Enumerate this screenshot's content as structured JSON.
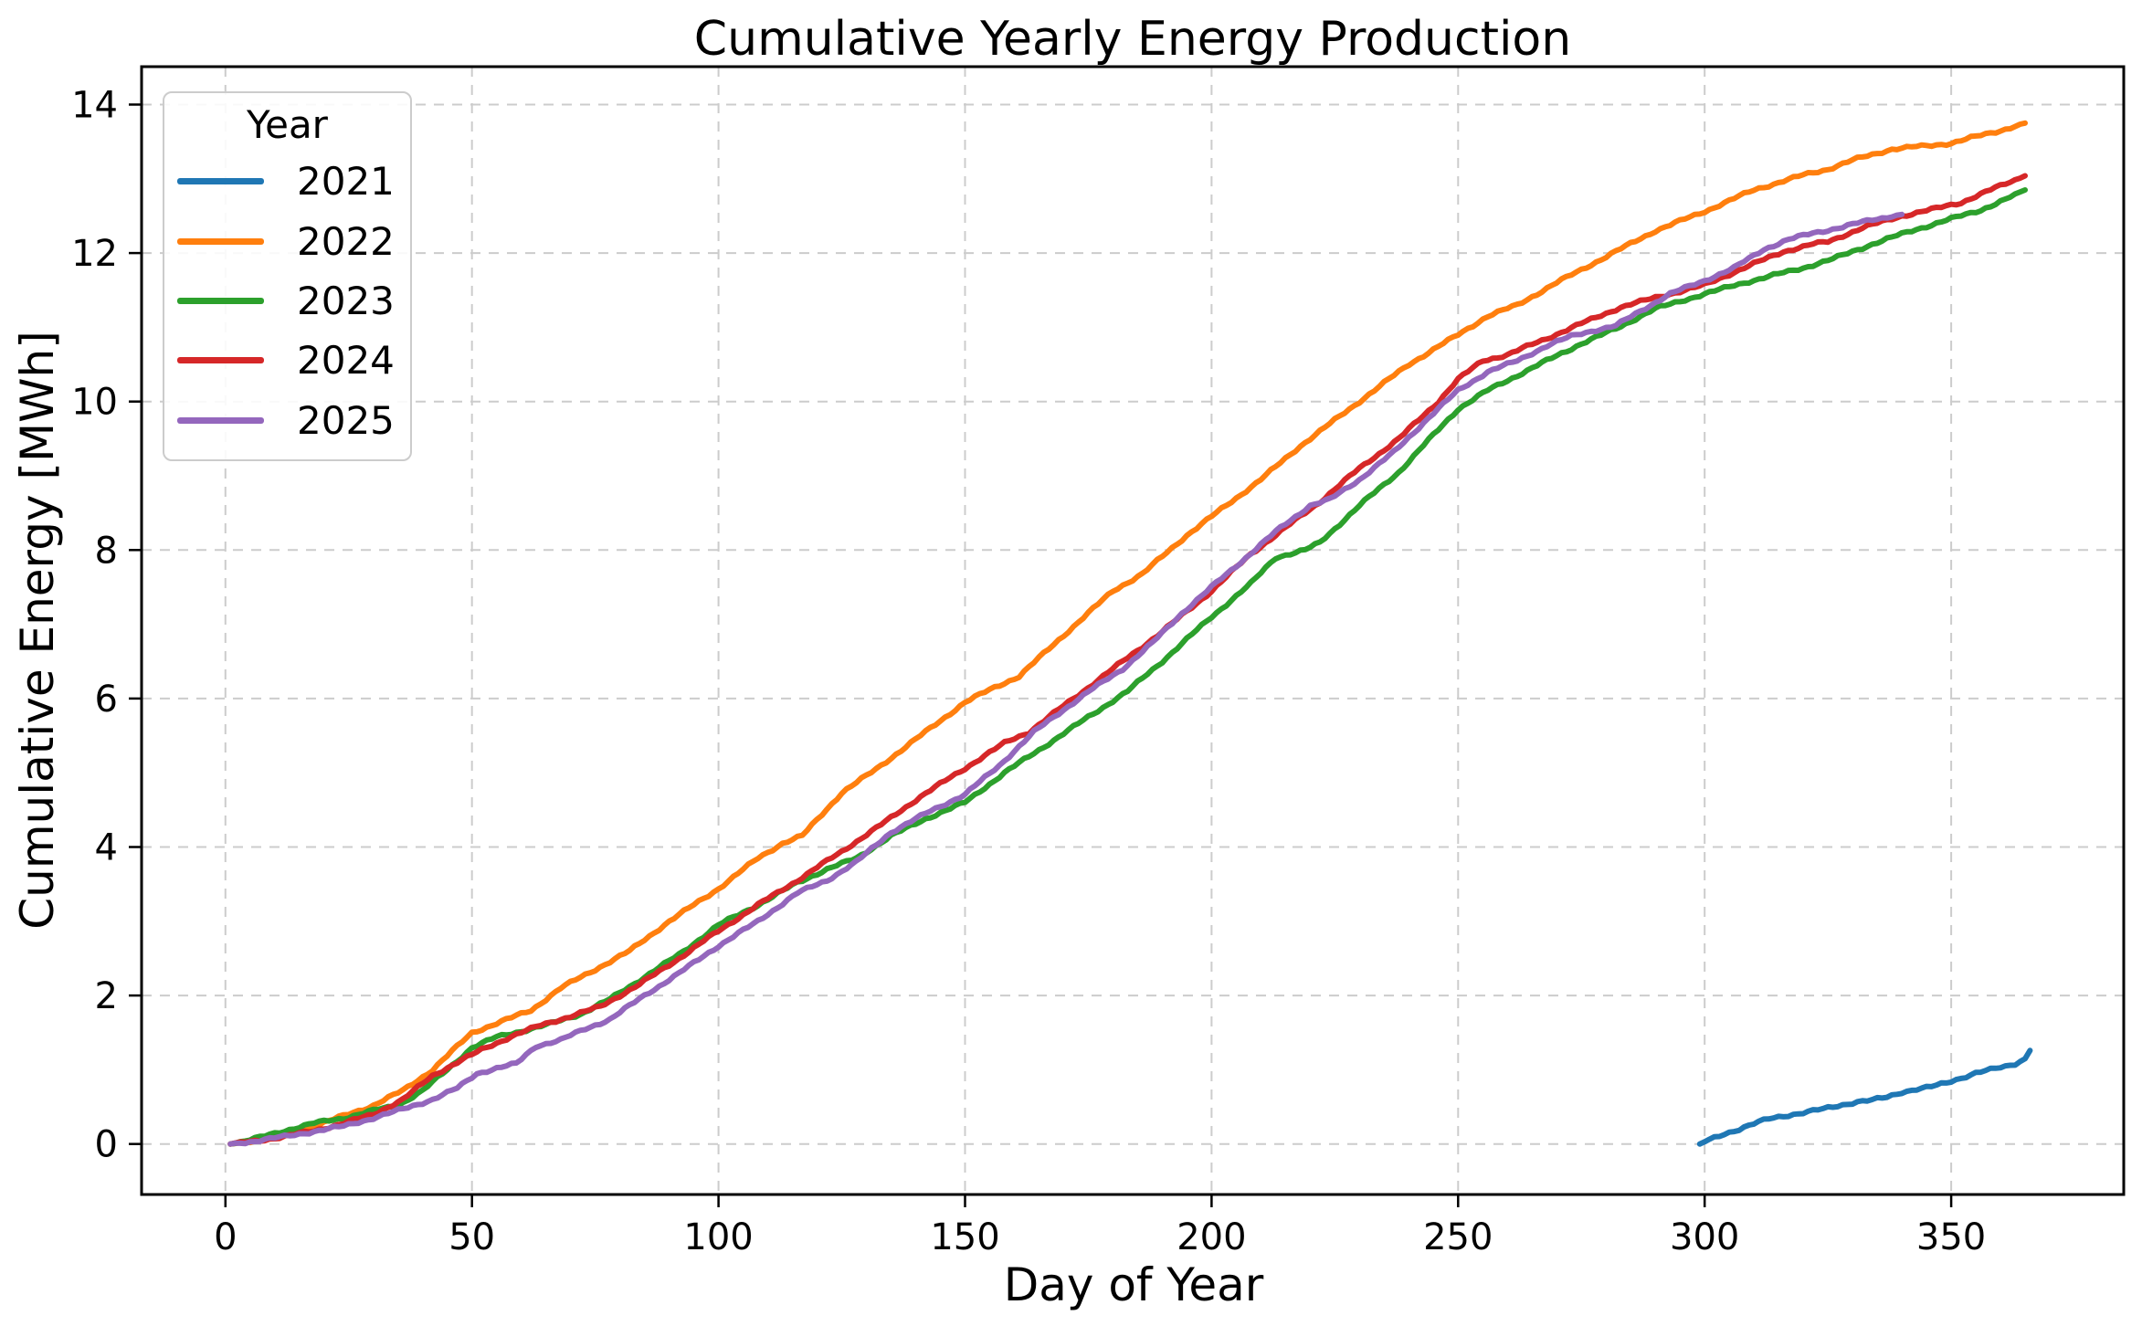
{
  "chart_data": {
    "type": "line",
    "title": "Cumulative Yearly Energy Production",
    "xlabel": "Day of Year",
    "ylabel": "Cumulative Energy [MWh]",
    "legend_title": "Year",
    "legend_position": "upper left",
    "grid": true,
    "xlim": [
      -17,
      385
    ],
    "ylim": [
      -0.68,
      14.51
    ],
    "xticks": [
      0,
      50,
      100,
      150,
      200,
      250,
      300,
      350
    ],
    "yticks": [
      0,
      2,
      4,
      6,
      8,
      10,
      12,
      14
    ],
    "grid_color": "#cccccc",
    "background_color": "#ffffff",
    "series": [
      {
        "name": "2021",
        "color": "#1f77b4",
        "points": [
          [
            299,
            0
          ],
          [
            301,
            0.06
          ],
          [
            304,
            0.14
          ],
          [
            307,
            0.2
          ],
          [
            310,
            0.27
          ],
          [
            313,
            0.34
          ],
          [
            316,
            0.38
          ],
          [
            320,
            0.42
          ],
          [
            324,
            0.47
          ],
          [
            328,
            0.53
          ],
          [
            331,
            0.57
          ],
          [
            334,
            0.59
          ],
          [
            337,
            0.63
          ],
          [
            340,
            0.7
          ],
          [
            343,
            0.74
          ],
          [
            346,
            0.77
          ],
          [
            349,
            0.82
          ],
          [
            352,
            0.89
          ],
          [
            355,
            0.96
          ],
          [
            358,
            1.0
          ],
          [
            361,
            1.04
          ],
          [
            363,
            1.08
          ],
          [
            365,
            1.15
          ],
          [
            366,
            1.26
          ]
        ]
      },
      {
        "name": "2022",
        "color": "#ff7f0e",
        "points": [
          [
            1,
            0
          ],
          [
            6,
            0.05
          ],
          [
            12,
            0.13
          ],
          [
            18,
            0.24
          ],
          [
            24,
            0.38
          ],
          [
            30,
            0.52
          ],
          [
            36,
            0.72
          ],
          [
            42,
            1.0
          ],
          [
            46,
            1.25
          ],
          [
            50,
            1.5
          ],
          [
            56,
            1.65
          ],
          [
            62,
            1.8
          ],
          [
            68,
            2.1
          ],
          [
            75,
            2.35
          ],
          [
            82,
            2.6
          ],
          [
            90,
            3.0
          ],
          [
            100,
            3.44
          ],
          [
            108,
            3.85
          ],
          [
            113,
            4.05
          ],
          [
            117,
            4.15
          ],
          [
            125,
            4.73
          ],
          [
            132,
            5.05
          ],
          [
            139,
            5.4
          ],
          [
            150,
            5.95
          ],
          [
            156,
            6.15
          ],
          [
            161,
            6.3
          ],
          [
            170,
            6.85
          ],
          [
            180,
            7.45
          ],
          [
            186,
            7.68
          ],
          [
            195,
            8.2
          ],
          [
            200,
            8.45
          ],
          [
            210,
            8.95
          ],
          [
            218,
            9.4
          ],
          [
            225,
            9.75
          ],
          [
            232,
            10.1
          ],
          [
            240,
            10.5
          ],
          [
            250,
            10.9
          ],
          [
            256,
            11.15
          ],
          [
            262,
            11.3
          ],
          [
            270,
            11.6
          ],
          [
            280,
            11.95
          ],
          [
            290,
            12.3
          ],
          [
            300,
            12.56
          ],
          [
            310,
            12.85
          ],
          [
            320,
            13.05
          ],
          [
            325,
            13.13
          ],
          [
            330,
            13.25
          ],
          [
            338,
            13.4
          ],
          [
            346,
            13.45
          ],
          [
            350,
            13.48
          ],
          [
            354,
            13.55
          ],
          [
            360,
            13.65
          ],
          [
            365,
            13.75
          ]
        ]
      },
      {
        "name": "2023",
        "color": "#2ca02c",
        "points": [
          [
            1,
            0
          ],
          [
            6,
            0.07
          ],
          [
            12,
            0.18
          ],
          [
            18,
            0.28
          ],
          [
            24,
            0.35
          ],
          [
            30,
            0.45
          ],
          [
            35,
            0.52
          ],
          [
            40,
            0.72
          ],
          [
            45,
            1.0
          ],
          [
            50,
            1.3
          ],
          [
            55,
            1.44
          ],
          [
            60,
            1.52
          ],
          [
            66,
            1.62
          ],
          [
            72,
            1.75
          ],
          [
            78,
            1.95
          ],
          [
            85,
            2.25
          ],
          [
            92,
            2.55
          ],
          [
            100,
            2.95
          ],
          [
            108,
            3.22
          ],
          [
            116,
            3.52
          ],
          [
            122,
            3.7
          ],
          [
            128,
            3.85
          ],
          [
            135,
            4.15
          ],
          [
            142,
            4.38
          ],
          [
            150,
            4.6
          ],
          [
            158,
            5.0
          ],
          [
            166,
            5.35
          ],
          [
            175,
            5.75
          ],
          [
            183,
            6.1
          ],
          [
            190,
            6.5
          ],
          [
            200,
            7.1
          ],
          [
            208,
            7.55
          ],
          [
            213,
            7.9
          ],
          [
            219,
            8.0
          ],
          [
            222,
            8.1
          ],
          [
            230,
            8.6
          ],
          [
            238,
            9.05
          ],
          [
            245,
            9.55
          ],
          [
            250,
            9.9
          ],
          [
            256,
            10.15
          ],
          [
            262,
            10.35
          ],
          [
            268,
            10.55
          ],
          [
            275,
            10.78
          ],
          [
            282,
            10.98
          ],
          [
            290,
            11.25
          ],
          [
            300,
            11.45
          ],
          [
            308,
            11.6
          ],
          [
            314,
            11.7
          ],
          [
            320,
            11.8
          ],
          [
            326,
            11.92
          ],
          [
            334,
            12.12
          ],
          [
            342,
            12.3
          ],
          [
            350,
            12.46
          ],
          [
            356,
            12.58
          ],
          [
            361,
            12.72
          ],
          [
            365,
            12.85
          ]
        ]
      },
      {
        "name": "2024",
        "color": "#d62728",
        "points": [
          [
            1,
            0
          ],
          [
            6,
            0.04
          ],
          [
            12,
            0.1
          ],
          [
            18,
            0.18
          ],
          [
            24,
            0.28
          ],
          [
            30,
            0.4
          ],
          [
            36,
            0.6
          ],
          [
            42,
            0.92
          ],
          [
            47,
            1.1
          ],
          [
            52,
            1.27
          ],
          [
            58,
            1.45
          ],
          [
            64,
            1.6
          ],
          [
            70,
            1.72
          ],
          [
            76,
            1.85
          ],
          [
            84,
            2.15
          ],
          [
            92,
            2.5
          ],
          [
            100,
            2.87
          ],
          [
            108,
            3.22
          ],
          [
            116,
            3.55
          ],
          [
            125,
            3.94
          ],
          [
            133,
            4.3
          ],
          [
            141,
            4.68
          ],
          [
            150,
            5.06
          ],
          [
            158,
            5.4
          ],
          [
            163,
            5.55
          ],
          [
            170,
            5.9
          ],
          [
            175,
            6.15
          ],
          [
            183,
            6.55
          ],
          [
            190,
            6.9
          ],
          [
            200,
            7.45
          ],
          [
            208,
            7.95
          ],
          [
            215,
            8.3
          ],
          [
            222,
            8.65
          ],
          [
            230,
            9.1
          ],
          [
            238,
            9.5
          ],
          [
            246,
            10.0
          ],
          [
            250,
            10.3
          ],
          [
            255,
            10.55
          ],
          [
            260,
            10.63
          ],
          [
            268,
            10.85
          ],
          [
            275,
            11.05
          ],
          [
            283,
            11.27
          ],
          [
            290,
            11.4
          ],
          [
            296,
            11.5
          ],
          [
            300,
            11.57
          ],
          [
            308,
            11.8
          ],
          [
            316,
            12.02
          ],
          [
            322,
            12.12
          ],
          [
            325,
            12.15
          ],
          [
            332,
            12.34
          ],
          [
            340,
            12.5
          ],
          [
            347,
            12.6
          ],
          [
            352,
            12.68
          ],
          [
            358,
            12.85
          ],
          [
            365,
            13.04
          ]
        ]
      },
      {
        "name": "2025",
        "color": "#9467bd",
        "points": [
          [
            1,
            0
          ],
          [
            6,
            0.04
          ],
          [
            12,
            0.1
          ],
          [
            18,
            0.17
          ],
          [
            24,
            0.24
          ],
          [
            30,
            0.35
          ],
          [
            36,
            0.47
          ],
          [
            42,
            0.6
          ],
          [
            47,
            0.75
          ],
          [
            51,
            0.95
          ],
          [
            55,
            1.02
          ],
          [
            59,
            1.08
          ],
          [
            63,
            1.32
          ],
          [
            68,
            1.4
          ],
          [
            73,
            1.55
          ],
          [
            78,
            1.68
          ],
          [
            85,
            2.0
          ],
          [
            92,
            2.3
          ],
          [
            100,
            2.67
          ],
          [
            108,
            3.0
          ],
          [
            116,
            3.38
          ],
          [
            122,
            3.55
          ],
          [
            128,
            3.8
          ],
          [
            135,
            4.2
          ],
          [
            142,
            4.45
          ],
          [
            150,
            4.71
          ],
          [
            157,
            5.1
          ],
          [
            164,
            5.55
          ],
          [
            170,
            5.85
          ],
          [
            175,
            6.09
          ],
          [
            182,
            6.4
          ],
          [
            188,
            6.75
          ],
          [
            194,
            7.15
          ],
          [
            200,
            7.5
          ],
          [
            207,
            7.9
          ],
          [
            214,
            8.3
          ],
          [
            220,
            8.6
          ],
          [
            224,
            8.68
          ],
          [
            230,
            8.95
          ],
          [
            237,
            9.32
          ],
          [
            244,
            9.78
          ],
          [
            250,
            10.15
          ],
          [
            256,
            10.4
          ],
          [
            262,
            10.55
          ],
          [
            268,
            10.75
          ],
          [
            273,
            10.88
          ],
          [
            277,
            10.95
          ],
          [
            282,
            11.02
          ],
          [
            287,
            11.22
          ],
          [
            293,
            11.45
          ],
          [
            300,
            11.63
          ],
          [
            306,
            11.8
          ],
          [
            312,
            12.05
          ],
          [
            317,
            12.18
          ],
          [
            322,
            12.27
          ],
          [
            328,
            12.35
          ],
          [
            334,
            12.45
          ],
          [
            340,
            12.52
          ]
        ]
      }
    ]
  }
}
